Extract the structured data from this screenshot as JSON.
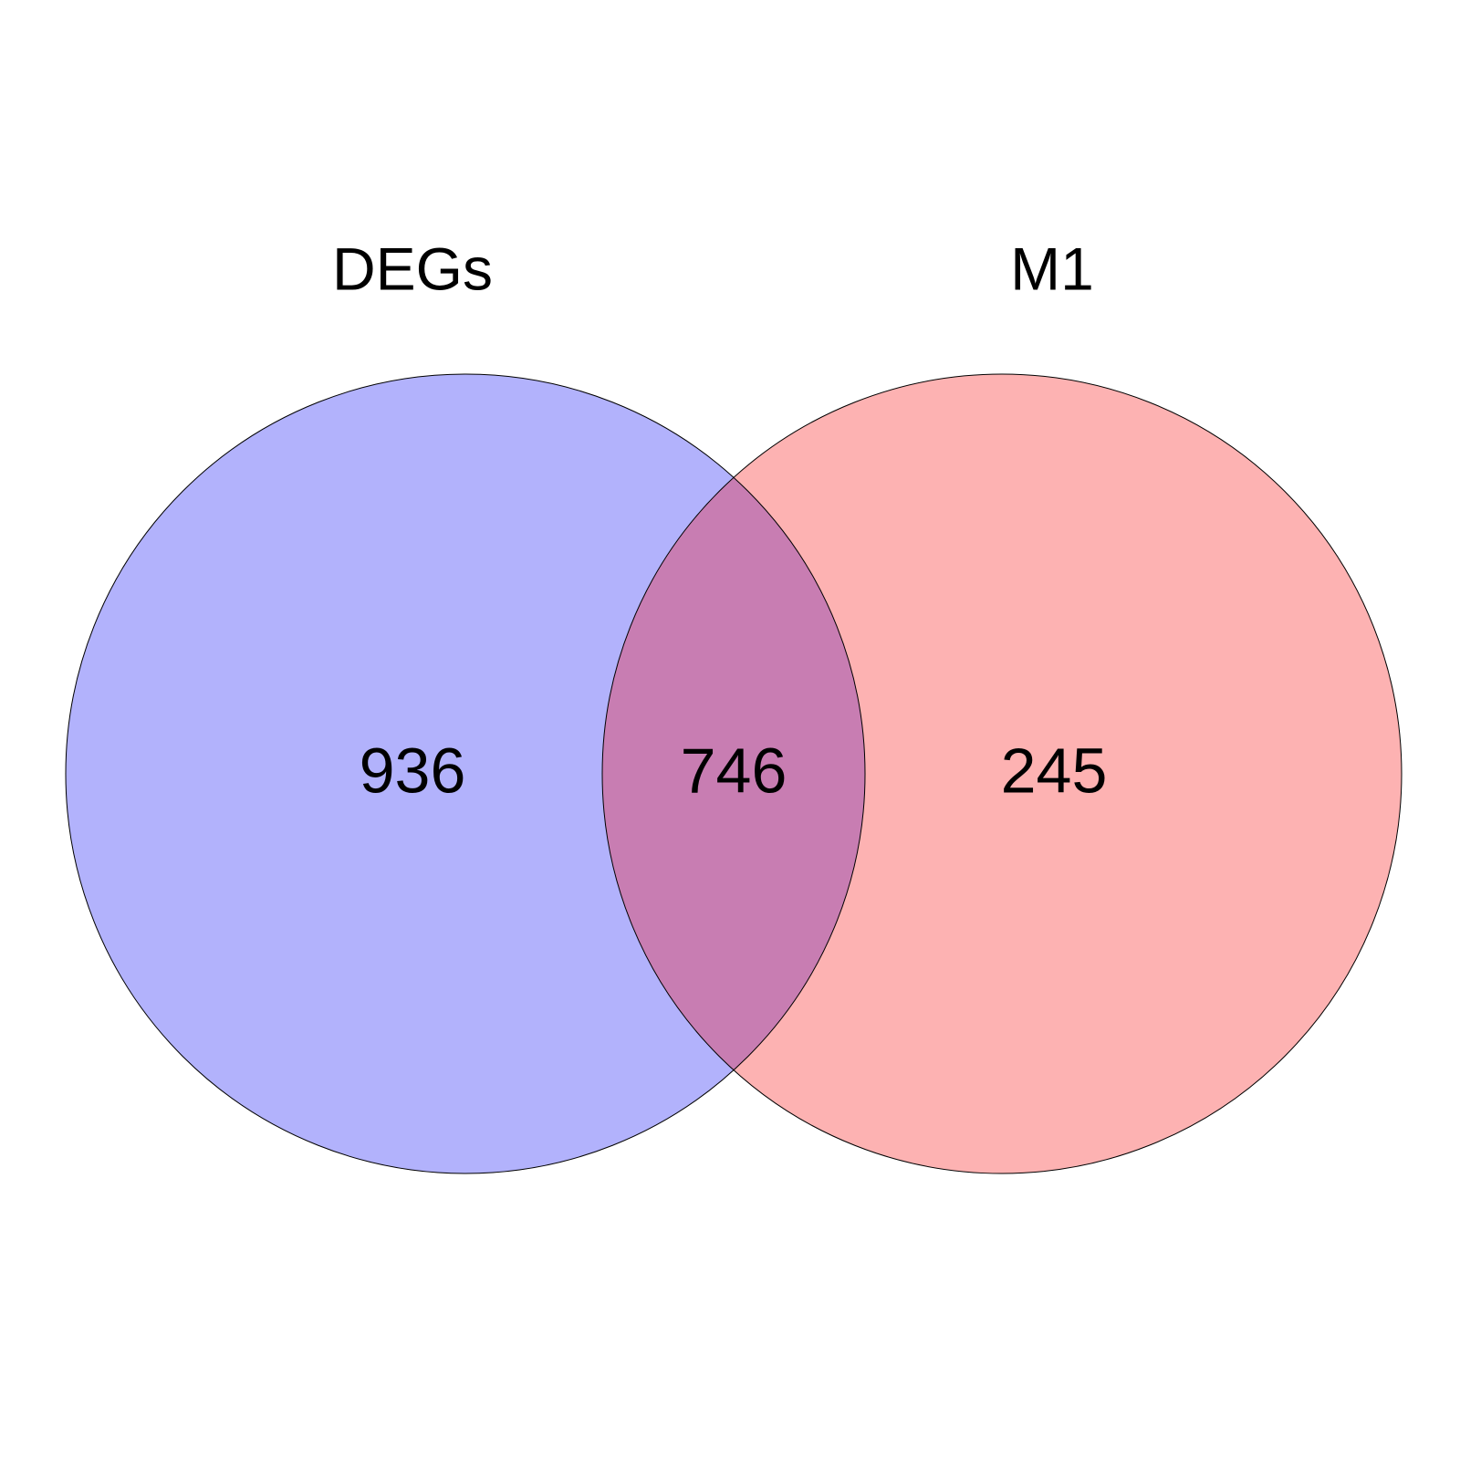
{
  "colors": {
    "set_a": "#b2b2fc",
    "set_b": "#fdb2b2",
    "overlap": "#c87db2",
    "outline": "#000000"
  },
  "sets": [
    {
      "name": "DEGs"
    },
    {
      "name": "M1"
    }
  ],
  "regions": {
    "only_a": "936",
    "both": "746",
    "only_b": "245"
  }
}
